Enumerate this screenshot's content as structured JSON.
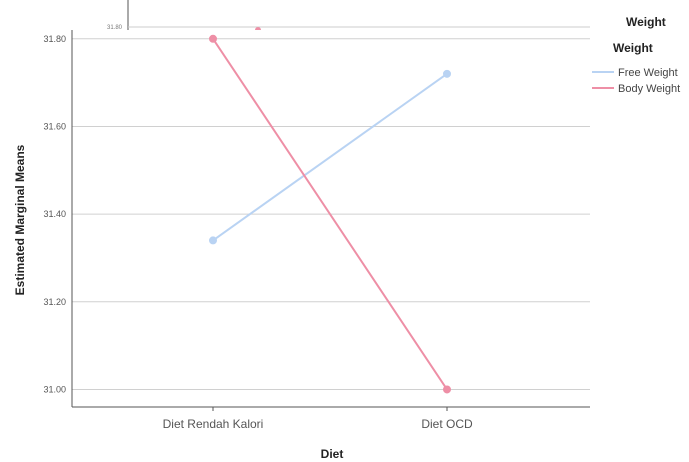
{
  "chart_data": {
    "type": "line",
    "xlabel": "Diet",
    "ylabel": "Estimated Marginal Means",
    "categories": [
      "Diet Rendah Kalori",
      "Diet OCD"
    ],
    "ylim": [
      30.96,
      31.82
    ],
    "yticks": [
      "31.80",
      "31.60",
      "31.40",
      "31.20",
      "31.00"
    ],
    "grid": true,
    "legend": {
      "title": "Weight",
      "position": "top-right"
    },
    "series": [
      {
        "name": "Free Weight",
        "color": "#b9d3f3",
        "values": [
          31.34,
          31.72
        ]
      },
      {
        "name": "Body Weight",
        "color": "#ee8fa6",
        "values": [
          31.8,
          31.0
        ]
      }
    ],
    "ghost": {
      "title": "Weight",
      "tick_label": "31.80"
    }
  }
}
